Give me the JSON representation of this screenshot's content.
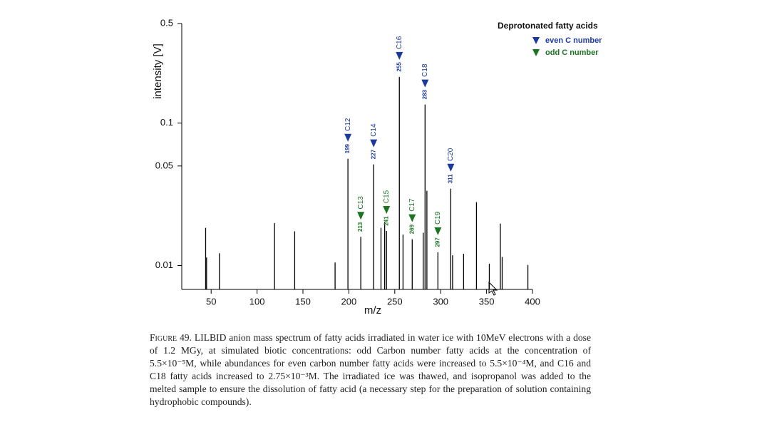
{
  "chart_data": {
    "type": "stem",
    "ylabel": "intensity [V]",
    "xlabel": "m/z",
    "xlim": [
      18,
      400
    ],
    "xticks": [
      50,
      100,
      150,
      200,
      250,
      300,
      350,
      400
    ],
    "ylim": [
      0.0068,
      0.5
    ],
    "yticks": [
      0.01,
      0.05,
      0.1,
      0.5
    ],
    "log_y": true,
    "color": "#000000",
    "x": [
      44,
      45,
      59,
      119,
      141,
      185,
      199,
      213,
      227,
      235,
      239,
      241,
      255,
      259,
      269,
      281,
      283,
      285,
      297,
      311,
      313,
      325,
      339,
      353,
      365,
      367,
      395
    ],
    "values": [
      0.0184,
      0.0114,
      0.0122,
      0.0199,
      0.0174,
      0.0105,
      0.0562,
      0.0159,
      0.0513,
      0.0184,
      0.0202,
      0.0175,
      0.211,
      0.0165,
      0.0153,
      0.017,
      0.135,
      0.0335,
      0.0124,
      0.0346,
      0.0118,
      0.0121,
      0.0279,
      0.0103,
      0.0197,
      0.0115,
      0.0101
    ],
    "legend": {
      "title": "Deprotonated fatty acids",
      "position": "top-right",
      "items": [
        {
          "label": "even C number",
          "color": "#1c3a9c"
        },
        {
          "label": "odd C number",
          "color": "#1a7420"
        }
      ]
    },
    "annotations": [
      {
        "mass": 199,
        "label": "C12",
        "color": "#1c3a9c"
      },
      {
        "mass": 213,
        "label": "C13",
        "color": "#1a7420"
      },
      {
        "mass": 227,
        "label": "C14",
        "color": "#1c3a9c"
      },
      {
        "mass": 241,
        "label": "C15",
        "color": "#1a7420"
      },
      {
        "mass": 255,
        "label": "C16",
        "color": "#1c3a9c"
      },
      {
        "mass": 269,
        "label": "C17",
        "color": "#1a7420"
      },
      {
        "mass": 283,
        "label": "C18",
        "color": "#1c3a9c"
      },
      {
        "mass": 297,
        "label": "C19",
        "color": "#1a7420"
      },
      {
        "mass": 311,
        "label": "C20",
        "color": "#1c3a9c"
      }
    ]
  },
  "caption": {
    "label": "Figure 49.",
    "text": "LILBID anion mass spectrum of fatty acids irradiated in water ice with 10MeV electrons with a dose of 1.2 MGy, at simulated biotic concentrations: odd Carbon number fatty acids at the concentration of 5.5×10⁻⁵M, while abundances for even carbon number fatty acids were increased to 5.5×10⁻⁴M, and C16 and C18 fatty acids increased to 2.75×10⁻³M. The irradiated ice was thawed, and isopropanol was added to the melted sample to ensure the dissolution of fatty acid (a necessary step for the preparation of solution containing hydrophobic compounds)."
  }
}
